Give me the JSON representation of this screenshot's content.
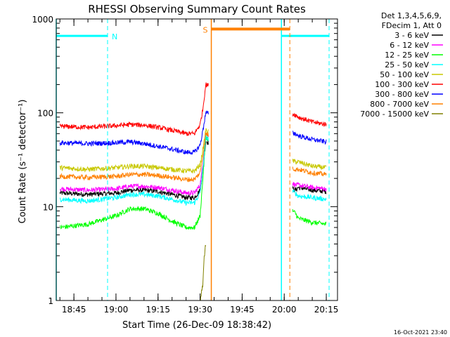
{
  "colors": {
    "background": "#ffffff",
    "axis": "#000000",
    "cyan": "#00ffff",
    "orange": "#ff8000",
    "text": "#000000"
  },
  "chart_data": {
    "type": "line",
    "title": "RHESSI Observing Summary Count Rates",
    "xlabel": "Start Time (26-Dec-09 18:38:42)",
    "ylabel": "Count Rate (s⁻¹ detector⁻¹)",
    "y_scale": "log",
    "xlim": [
      "18:38:42",
      "20:19:00"
    ],
    "ylim": [
      1,
      1000
    ],
    "x_ticks": [
      "18:45",
      "19:00",
      "19:15",
      "19:30",
      "19:45",
      "20:00",
      "20:15"
    ],
    "y_ticks": [
      "1",
      "10",
      "100",
      "1000"
    ],
    "timestamp": "16-Oct-2021 23:40",
    "legend_header": [
      "Det 1,3,4,5,6,9,",
      "FDecim 1, Att 0"
    ],
    "legend_position": "top-right",
    "data_gap": [
      "19:33",
      "20:03"
    ],
    "series": [
      {
        "name": "3 - 6 keV",
        "color": "#000000",
        "x": [
          "18:40",
          "18:50",
          "19:00",
          "19:05",
          "19:10",
          "19:15",
          "19:20",
          "19:25",
          "19:28",
          "19:30",
          "19:31",
          "19:32",
          "20:04",
          "20:05",
          "20:10",
          "20:15"
        ],
        "values": [
          14,
          13.5,
          14,
          15,
          15,
          14.5,
          13.5,
          12.5,
          12.5,
          15,
          25,
          50,
          15,
          16,
          15,
          14.5
        ]
      },
      {
        "name": "6 - 12 keV",
        "color": "#ff00ff",
        "x": [
          "18:40",
          "18:50",
          "19:00",
          "19:05",
          "19:10",
          "19:15",
          "19:20",
          "19:25",
          "19:28",
          "19:30",
          "19:31",
          "19:32",
          "20:04",
          "20:05",
          "20:10",
          "20:15"
        ],
        "values": [
          15.5,
          15,
          15.5,
          16.5,
          16.5,
          16,
          15,
          14,
          14,
          17,
          28,
          60,
          17,
          17,
          16,
          15.5
        ]
      },
      {
        "name": "12 - 25 keV",
        "color": "#00ff00",
        "x": [
          "18:40",
          "18:50",
          "19:00",
          "19:05",
          "19:10",
          "19:15",
          "19:20",
          "19:25",
          "19:28",
          "19:30",
          "19:31",
          "19:32",
          "20:04",
          "20:05",
          "20:10",
          "20:15"
        ],
        "values": [
          6,
          6.5,
          8,
          9.5,
          9.5,
          8.5,
          7,
          6,
          6,
          8,
          20,
          55,
          8.5,
          7.5,
          6.8,
          6.5
        ]
      },
      {
        "name": "25 - 50 keV",
        "color": "#00ffff",
        "x": [
          "18:40",
          "18:50",
          "19:00",
          "19:05",
          "19:10",
          "19:15",
          "19:20",
          "19:25",
          "19:28",
          "19:30",
          "19:31",
          "19:32",
          "20:04",
          "20:05",
          "20:10",
          "20:15"
        ],
        "values": [
          12,
          11.5,
          12.5,
          13.5,
          13.5,
          13,
          12,
          11,
          11,
          14,
          25,
          55,
          14,
          13,
          12.5,
          12
        ]
      },
      {
        "name": "50 - 100 keV",
        "color": "#c8c800",
        "x": [
          "18:40",
          "18:50",
          "19:00",
          "19:05",
          "19:10",
          "19:15",
          "19:20",
          "19:25",
          "19:28",
          "19:30",
          "19:31",
          "19:32",
          "20:04",
          "20:05",
          "20:10",
          "20:15"
        ],
        "values": [
          26,
          25,
          26,
          27,
          27,
          26,
          25,
          24,
          24,
          28,
          40,
          65,
          30,
          30,
          27,
          26
        ]
      },
      {
        "name": "100 - 300 keV",
        "color": "#ff0000",
        "x": [
          "18:40",
          "18:50",
          "19:00",
          "19:05",
          "19:10",
          "19:15",
          "19:20",
          "19:25",
          "19:28",
          "19:30",
          "19:31",
          "19:32",
          "20:04",
          "20:05",
          "20:10",
          "20:15"
        ],
        "values": [
          72,
          70,
          73,
          75,
          74,
          70,
          65,
          60,
          60,
          75,
          110,
          200,
          95,
          90,
          80,
          75
        ]
      },
      {
        "name": "300 - 800 keV",
        "color": "#0000ff",
        "x": [
          "18:40",
          "18:50",
          "19:00",
          "19:05",
          "19:10",
          "19:15",
          "19:20",
          "19:25",
          "19:28",
          "19:30",
          "19:31",
          "19:32",
          "20:04",
          "20:05",
          "20:10",
          "20:15"
        ],
        "values": [
          48,
          47,
          48,
          49,
          47,
          44,
          41,
          38,
          38,
          45,
          65,
          100,
          60,
          57,
          52,
          49
        ]
      },
      {
        "name": "800 - 7000 keV",
        "color": "#ff8000",
        "x": [
          "18:40",
          "18:50",
          "19:00",
          "19:05",
          "19:10",
          "19:15",
          "19:20",
          "19:25",
          "19:28",
          "19:30",
          "19:31",
          "19:32",
          "20:04",
          "20:05",
          "20:10",
          "20:15"
        ],
        "values": [
          21,
          20.5,
          21,
          22,
          22,
          21.5,
          20.5,
          19.5,
          19.5,
          23,
          35,
          60,
          25,
          25,
          23,
          22
        ]
      },
      {
        "name": "7000 - 15000 keV",
        "color": "#808000",
        "x": [
          "19:30",
          "19:31",
          "19:31:30",
          "19:32"
        ],
        "values": [
          1,
          1.5,
          3,
          4
        ]
      }
    ],
    "annotations": [
      {
        "label": "N",
        "type": "night",
        "color": "#00ffff",
        "x_start": "18:38:42",
        "x_end": "18:57:00",
        "level": 660
      },
      {
        "label": "",
        "type": "night",
        "color": "#00ffff",
        "x_start": "19:59:00",
        "x_end": "20:16:00",
        "level": 660
      },
      {
        "label": "S",
        "type": "saa",
        "color": "#ff8000",
        "x_start": "19:34:00",
        "x_end": "20:02:00",
        "level": 780
      }
    ]
  }
}
